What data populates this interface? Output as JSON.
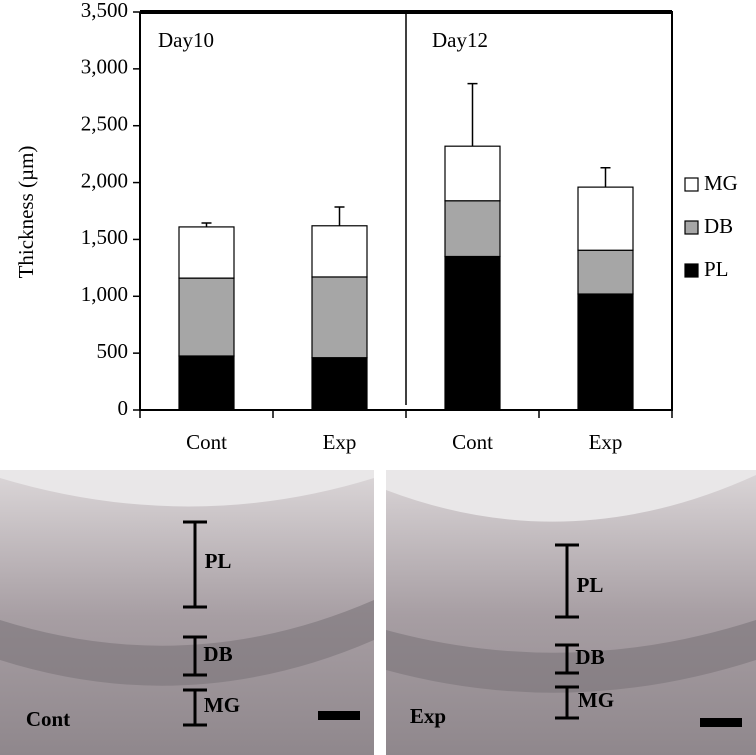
{
  "chart_data": {
    "type": "stacked_bar",
    "y_label": "Thickness (µm)",
    "categories": [
      "Cont",
      "Exp",
      "Cont",
      "Exp"
    ],
    "group_labels": [
      "Day10",
      "Day12"
    ],
    "series": [
      {
        "name": "PL",
        "color": "#000000",
        "values": [
          475,
          460,
          1350,
          1020
        ]
      },
      {
        "name": "DB",
        "color": "#a6a6a6",
        "values": [
          685,
          710,
          490,
          385
        ]
      },
      {
        "name": "MG",
        "color": "#ffffff",
        "values": [
          450,
          450,
          480,
          555
        ]
      }
    ],
    "errors": [
      35,
      165,
      550,
      170
    ],
    "ylim": [
      0,
      3500
    ],
    "yticks": [
      0,
      500,
      {
        "value": 1000,
        "label": "1,000"
      },
      {
        "value": 1500,
        "label": "1,500"
      },
      {
        "value": 2000,
        "label": "2,000"
      },
      {
        "value": 2500,
        "label": "2,500"
      },
      {
        "value": 3000,
        "label": "3,000"
      },
      {
        "value": 3500,
        "label": "3,500"
      }
    ],
    "legend": "right"
  },
  "panels": [
    {
      "label": "Cont",
      "layers": [
        "PL",
        "DB",
        "MG"
      ]
    },
    {
      "label": "Exp",
      "layers": [
        "PL",
        "DB",
        "MG"
      ]
    }
  ]
}
